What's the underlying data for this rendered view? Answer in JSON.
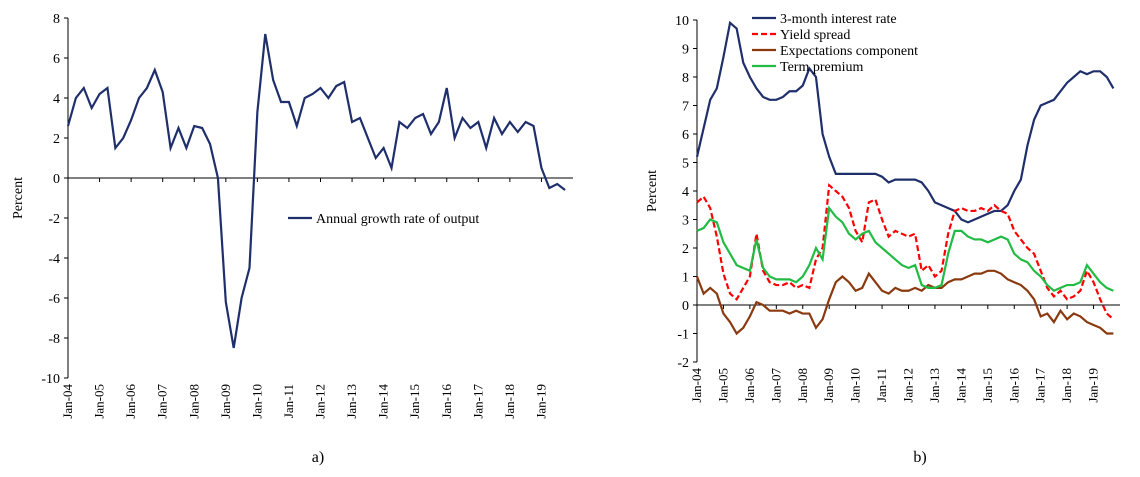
{
  "chart_data": [
    {
      "type": "line",
      "caption": "a)",
      "y_label": "Percent",
      "legend": "right",
      "categories": [
        "Jan-04",
        null,
        null,
        null,
        "Jan-05",
        null,
        null,
        null,
        "Jan-06",
        null,
        null,
        null,
        "Jan-07",
        null,
        null,
        null,
        "Jan-08",
        null,
        null,
        null,
        "Jan-09",
        null,
        null,
        null,
        "Jan-10",
        null,
        null,
        null,
        "Jan-11",
        null,
        null,
        null,
        "Jan-12",
        null,
        null,
        null,
        "Jan-13",
        null,
        null,
        null,
        "Jan-14",
        null,
        null,
        null,
        "Jan-15",
        null,
        null,
        null,
        "Jan-16",
        null,
        null,
        null,
        "Jan-17",
        null,
        null,
        null,
        "Jan-18",
        null,
        null,
        null,
        "Jan-19",
        null,
        null,
        null
      ],
      "ylim": [
        -10,
        8
      ],
      "yticks": [
        -10,
        -8,
        -6,
        -4,
        -2,
        0,
        2,
        4,
        6,
        8
      ],
      "series": [
        {
          "name": "Annual growth rate of output",
          "color": "#1f2f6b",
          "dash": false,
          "values": [
            2.6,
            4.0,
            4.5,
            3.5,
            4.2,
            4.5,
            1.5,
            2.0,
            2.9,
            4.0,
            4.5,
            5.4,
            4.3,
            1.5,
            2.5,
            1.5,
            2.6,
            2.5,
            1.7,
            0.0,
            -6.2,
            -8.5,
            -6.0,
            -4.5,
            3.3,
            7.2,
            4.9,
            3.8,
            3.8,
            2.6,
            4.0,
            4.2,
            4.5,
            4.0,
            4.6,
            4.8,
            2.8,
            3.0,
            2.0,
            1.0,
            1.5,
            0.5,
            2.8,
            2.5,
            3.0,
            3.2,
            2.2,
            2.8,
            4.5,
            2.0,
            3.0,
            2.5,
            2.8,
            1.5,
            3.0,
            2.2,
            2.8,
            2.3,
            2.8,
            2.6,
            0.5,
            -0.5,
            -0.3,
            -0.6
          ]
        }
      ]
    },
    {
      "type": "line",
      "caption": "b)",
      "y_label": "Percent",
      "legend": "top",
      "categories": [
        "Jan-04",
        null,
        null,
        null,
        "Jan-05",
        null,
        null,
        null,
        "Jan-06",
        null,
        null,
        null,
        "Jan-07",
        null,
        null,
        null,
        "Jan-08",
        null,
        null,
        null,
        "Jan-09",
        null,
        null,
        null,
        "Jan-10",
        null,
        null,
        null,
        "Jan-11",
        null,
        null,
        null,
        "Jan-12",
        null,
        null,
        null,
        "Jan-13",
        null,
        null,
        null,
        "Jan-14",
        null,
        null,
        null,
        "Jan-15",
        null,
        null,
        null,
        "Jan-16",
        null,
        null,
        null,
        "Jan-17",
        null,
        null,
        null,
        "Jan-18",
        null,
        null,
        null,
        "Jan-19",
        null,
        null,
        null
      ],
      "ylim": [
        -2,
        10
      ],
      "yticks": [
        -2,
        -1,
        0,
        1,
        2,
        3,
        4,
        5,
        6,
        7,
        8,
        9,
        10
      ],
      "series": [
        {
          "name": "3-month interest rate",
          "color": "#1f2f6b",
          "dash": false,
          "values": [
            5.2,
            6.2,
            7.2,
            7.6,
            8.7,
            9.9,
            9.7,
            8.5,
            8.0,
            7.6,
            7.3,
            7.2,
            7.2,
            7.3,
            7.5,
            7.5,
            7.7,
            8.3,
            8.0,
            6.0,
            5.2,
            4.6,
            4.6,
            4.6,
            4.6,
            4.6,
            4.6,
            4.6,
            4.5,
            4.3,
            4.4,
            4.4,
            4.4,
            4.4,
            4.3,
            4.0,
            3.6,
            3.5,
            3.4,
            3.3,
            3.0,
            2.9,
            3.0,
            3.1,
            3.2,
            3.3,
            3.3,
            3.5,
            4.0,
            4.4,
            5.6,
            6.5,
            7.0,
            7.1,
            7.2,
            7.5,
            7.8,
            8.0,
            8.2,
            8.1,
            8.2,
            8.2,
            8.0,
            7.6
          ]
        },
        {
          "name": "Yield spread",
          "color": "#ff0000",
          "dash": true,
          "values": [
            3.6,
            3.8,
            3.4,
            2.4,
            1.1,
            0.4,
            0.2,
            0.6,
            1.0,
            2.5,
            1.2,
            0.8,
            0.7,
            0.7,
            0.8,
            0.6,
            0.7,
            0.6,
            1.6,
            2.0,
            4.2,
            4.0,
            3.8,
            3.4,
            2.6,
            2.2,
            3.6,
            3.7,
            3.0,
            2.4,
            2.6,
            2.5,
            2.4,
            2.5,
            1.2,
            1.4,
            1.0,
            1.2,
            2.5,
            3.3,
            3.4,
            3.3,
            3.3,
            3.4,
            3.3,
            3.5,
            3.3,
            3.2,
            2.6,
            2.3,
            2.0,
            1.8,
            1.2,
            0.6,
            0.3,
            0.5,
            0.2,
            0.3,
            0.5,
            1.2,
            0.8,
            0.2,
            -0.3,
            -0.5
          ]
        },
        {
          "name": "Expectations component",
          "color": "#8b3a0f",
          "dash": false,
          "values": [
            1.0,
            0.4,
            0.6,
            0.4,
            -0.3,
            -0.6,
            -1.0,
            -0.8,
            -0.4,
            0.1,
            0.0,
            -0.2,
            -0.2,
            -0.2,
            -0.3,
            -0.2,
            -0.3,
            -0.3,
            -0.8,
            -0.5,
            0.2,
            0.8,
            1.0,
            0.8,
            0.5,
            0.6,
            1.1,
            0.8,
            0.5,
            0.4,
            0.6,
            0.5,
            0.5,
            0.6,
            0.5,
            0.7,
            0.6,
            0.6,
            0.8,
            0.9,
            0.9,
            1.0,
            1.1,
            1.1,
            1.2,
            1.2,
            1.1,
            0.9,
            0.8,
            0.7,
            0.5,
            0.2,
            -0.4,
            -0.3,
            -0.6,
            -0.2,
            -0.5,
            -0.3,
            -0.4,
            -0.6,
            -0.7,
            -0.8,
            -1.0,
            -1.0
          ]
        },
        {
          "name": "Term premium",
          "color": "#22bb44",
          "dash": false,
          "values": [
            2.6,
            2.7,
            3.0,
            2.9,
            2.2,
            1.8,
            1.4,
            1.3,
            1.2,
            2.3,
            1.3,
            1.0,
            0.9,
            0.9,
            0.9,
            0.8,
            1.0,
            1.4,
            2.0,
            1.6,
            3.4,
            3.1,
            2.9,
            2.5,
            2.3,
            2.5,
            2.6,
            2.2,
            2.0,
            1.8,
            1.6,
            1.4,
            1.3,
            1.4,
            0.7,
            0.6,
            0.6,
            0.7,
            1.8,
            2.6,
            2.6,
            2.4,
            2.3,
            2.3,
            2.2,
            2.3,
            2.4,
            2.3,
            1.8,
            1.6,
            1.5,
            1.2,
            1.0,
            0.7,
            0.5,
            0.6,
            0.7,
            0.7,
            0.8,
            1.4,
            1.1,
            0.8,
            0.6,
            0.5
          ]
        }
      ]
    }
  ]
}
